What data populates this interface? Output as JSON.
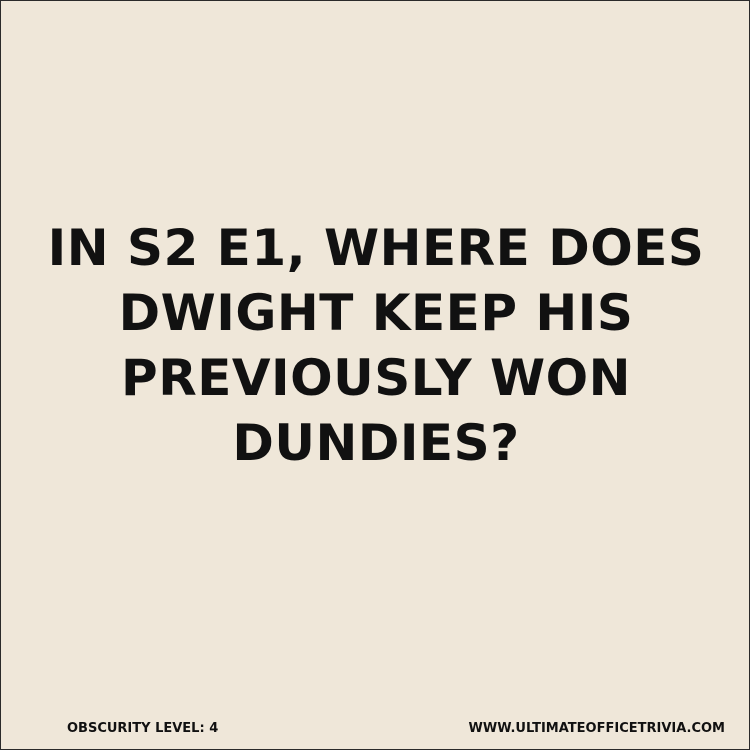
{
  "question": {
    "lines": [
      "IN S2 E1, WHERE DOES",
      "DWIGHT KEEP HIS",
      "PREVIOUSLY WON",
      "DUNDIES?"
    ]
  },
  "footer": {
    "obscurity": "OBSCURITY LEVEL: 4",
    "website": "WWW.ULTIMATEOFFICETRIVIA.COM"
  },
  "colors": {
    "background": "#efe7d9",
    "text": "#111111"
  }
}
